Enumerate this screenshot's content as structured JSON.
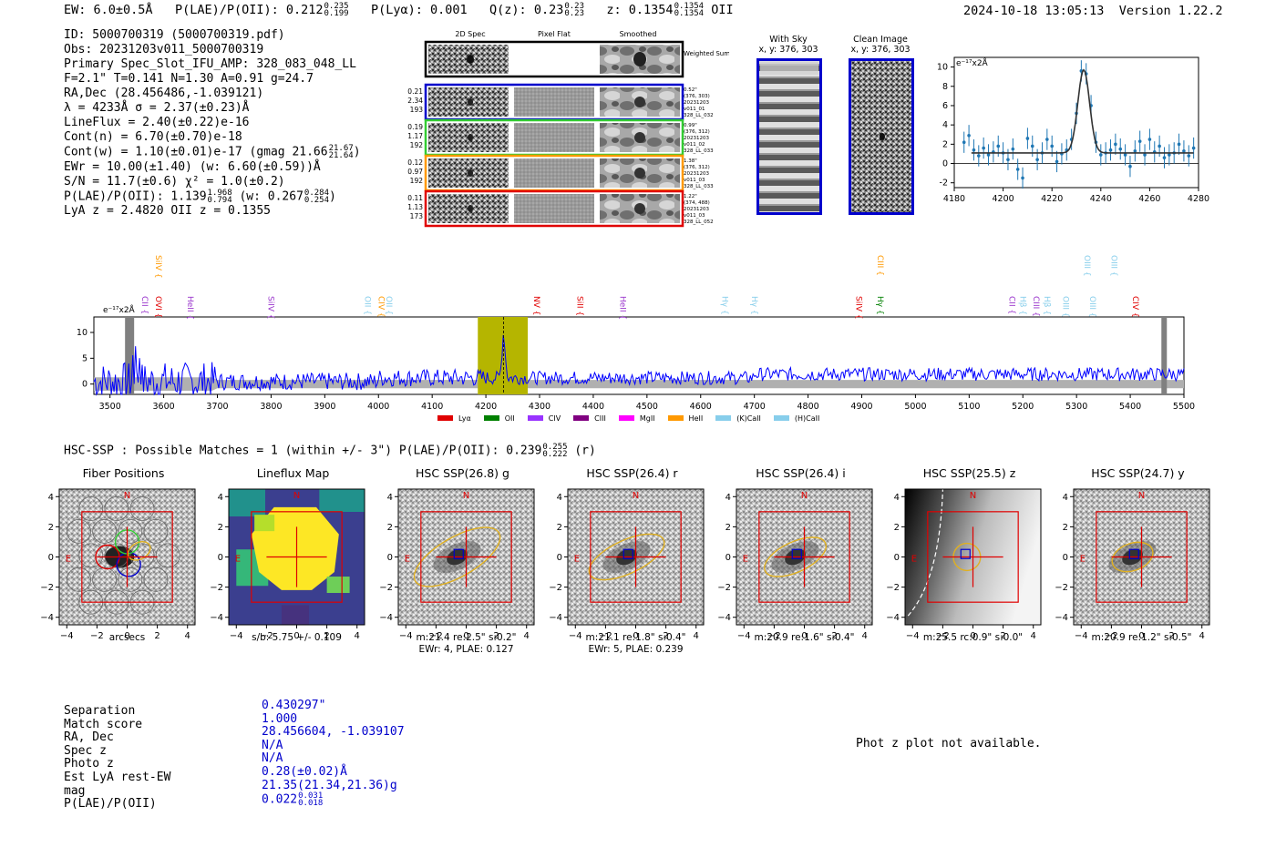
{
  "header": {
    "ew": "EW: 6.0±0.5Å",
    "plae_label": "P(LAE)/P(OII): 0.212",
    "plae_hi": "0.235",
    "plae_lo": "0.199",
    "plya": "P(Lyα): 0.001",
    "qz_label": "Q(z): 0.23",
    "qz_hi": "0.23",
    "qz_lo": "0.23",
    "z_label": "z: 0.1354",
    "z_hi": "0.1354",
    "z_lo": "0.1354",
    "z_line": "OII",
    "timestamp": "2024-10-18 13:05:13",
    "version": "Version 1.22.2"
  },
  "info": {
    "id": "ID: 5000700319 (5000700319.pdf)",
    "obs": "Obs: 20231203v011_5000700319",
    "primary": "Primary Spec_Slot_IFU_AMP: 328_083_048_LL",
    "fwhm": "F=2.1\"  T=0.141  N=1.30  A=0.91  g=24.7",
    "radec": "RA,Dec (28.456486,-1.039121)",
    "lambda": "λ = 4233Å  σ = 2.37(±0.23)Å",
    "lineflux": "LineFlux = 2.40(±0.22)e-16",
    "contn": "Cont(n) = 6.70(±0.70)e-18",
    "contw": "Cont(w) = 1.10(±0.01)e-17 (gmag 21.66",
    "contw_hi": "21.67",
    "contw_lo": "21.64",
    "contw_end": ")",
    "ewr": "EWr = 10.00(±1.40) (w: 6.60(±0.59))Å",
    "sn": "S/N = 11.7(±0.6)  χ² = 1.0(±0.2)",
    "plae": "P(LAE)/P(OII): 1.139",
    "plae_hi": "1.968",
    "plae_lo": "0.794",
    "plae_w": "(w: 0.267",
    "plae_w_hi": "0.284",
    "plae_w_lo": "0.254",
    "plae_w_end": ")",
    "lyaz": "LyA z = 2.4820  OII z = 0.1355"
  },
  "stamps": {
    "col_titles": [
      "2D Spec",
      "Pixel Flat",
      "Smoothed"
    ],
    "weighted_label": "Weighted Sum",
    "rows": [
      {
        "color": "#0000cc",
        "snr": [
          "0.21",
          "2.34",
          "193"
        ],
        "meta": [
          "0.52\"",
          "(376, 303)",
          "20231203",
          "v011_01",
          "328_LL_032"
        ]
      },
      {
        "color": "#33cc33",
        "snr": [
          "0.19",
          "1.17",
          "192"
        ],
        "meta": [
          "0.99\"",
          "(376, 312)",
          "20231203",
          "v011_02",
          "328_LL_033"
        ]
      },
      {
        "color": "#ff9900",
        "snr": [
          "0.12",
          "0.97",
          "192"
        ],
        "meta": [
          "1.38\"",
          "(376, 312)",
          "20231203",
          "v011_03",
          "328_LL_033"
        ]
      },
      {
        "color": "#e00000",
        "snr": [
          "0.11",
          "1.13",
          "173"
        ],
        "meta": [
          "1.22\"",
          "(374, 488)",
          "20231203",
          "v011_03",
          "328_LL_052"
        ]
      }
    ]
  },
  "sky": {
    "with_sky_title": "With Sky",
    "with_sky_xy": "x, y: 376, 303",
    "clean_title": "Clean Image",
    "clean_xy": "x, y: 376, 303"
  },
  "chart_data": [
    {
      "type": "line",
      "title": "",
      "ylabel_unit": "e⁻¹⁷x2Å",
      "xlabel": "",
      "xlim": [
        4180,
        4280
      ],
      "ylim": [
        -2.5,
        11
      ],
      "x_ticks": [
        4180,
        4200,
        4220,
        4240,
        4260,
        4280
      ],
      "y_ticks": [
        -2,
        0,
        2,
        4,
        6,
        8,
        10
      ],
      "series": [
        {
          "name": "data",
          "x": [
            4184,
            4186,
            4188,
            4190,
            4192,
            4194,
            4196,
            4198,
            4200,
            4202,
            4204,
            4206,
            4208,
            4210,
            4212,
            4214,
            4216,
            4218,
            4220,
            4222,
            4224,
            4226,
            4228,
            4230,
            4232,
            4234,
            4236,
            4238,
            4240,
            4242,
            4244,
            4246,
            4248,
            4250,
            4252,
            4254,
            4256,
            4258,
            4260,
            4262,
            4264,
            4266,
            4268,
            4270,
            4272,
            4274,
            4276,
            4278
          ],
          "values": [
            2.2,
            2.9,
            1.4,
            0.8,
            1.6,
            0.9,
            1.2,
            1.8,
            1.1,
            0.4,
            1.5,
            -0.6,
            -1.5,
            2.6,
            1.8,
            0.4,
            1.1,
            2.5,
            1.8,
            0.2,
            1.0,
            1.4,
            2.5,
            5.2,
            9.6,
            9.3,
            6.0,
            2.2,
            0.9,
            1.1,
            1.4,
            2.0,
            1.5,
            0.9,
            -0.3,
            1.3,
            2.3,
            0.9,
            2.5,
            1.2,
            1.8,
            0.6,
            0.9,
            1.1,
            2.0,
            1.3,
            0.8,
            1.6
          ]
        },
        {
          "name": "gaussian fit",
          "center": 4233,
          "amplitude": 8.6,
          "sigma": 2.4,
          "baseline": 1.1
        }
      ]
    },
    {
      "type": "line",
      "title": "",
      "ylabel_unit": "e⁻¹⁷x2Å",
      "xlim": [
        3470,
        5500
      ],
      "ylim": [
        -2,
        13
      ],
      "x_ticks": [
        3500,
        3600,
        3700,
        3800,
        3900,
        4000,
        4100,
        4200,
        4300,
        4400,
        4500,
        4600,
        4700,
        4800,
        4900,
        5000,
        5100,
        5200,
        5300,
        5400,
        5500
      ],
      "y_ticks": [
        0,
        5,
        10
      ],
      "highlight_range": [
        4185,
        4278
      ],
      "marker_x": 4233,
      "line_labels": [
        {
          "label": "CII",
          "x": 3555,
          "color": "#9933cc",
          "level": 2
        },
        {
          "label": "SiIV",
          "x": 3580,
          "color": "#ff9900",
          "level": 0
        },
        {
          "label": "OVI",
          "x": 3580,
          "color": "#e00000",
          "level": 2
        },
        {
          "label": "HeII",
          "x": 3640,
          "color": "#9933cc",
          "level": 2
        },
        {
          "label": "SiIV",
          "x": 3790,
          "color": "#9933cc",
          "level": 2
        },
        {
          "label": "OII",
          "x": 3970,
          "color": "#87ceeb",
          "level": 2
        },
        {
          "label": "CIV",
          "x": 3995,
          "color": "#ff9900",
          "level": 2
        },
        {
          "label": "OII",
          "x": 4010,
          "color": "#87ceeb",
          "level": 2
        },
        {
          "label": "NV",
          "x": 4285,
          "color": "#e00000",
          "level": 2
        },
        {
          "label": "SiII",
          "x": 4365,
          "color": "#e00000",
          "level": 2
        },
        {
          "label": "HeII",
          "x": 4445,
          "color": "#9933cc",
          "level": 2
        },
        {
          "label": "Hγ",
          "x": 4635,
          "color": "#87ceeb",
          "level": 2
        },
        {
          "label": "Hγ",
          "x": 4690,
          "color": "#87ceeb",
          "level": 2
        },
        {
          "label": "SiIV",
          "x": 4885,
          "color": "#e00000",
          "level": 2
        },
        {
          "label": "CIII",
          "x": 4925,
          "color": "#ff9900",
          "level": 0
        },
        {
          "label": "Hγ",
          "x": 4925,
          "color": "#008000",
          "level": 2
        },
        {
          "label": "CII",
          "x": 5170,
          "color": "#9933cc",
          "level": 2
        },
        {
          "label": "Hβ",
          "x": 5190,
          "color": "#87ceeb",
          "level": 2
        },
        {
          "label": "CIII",
          "x": 5215,
          "color": "#9933cc",
          "level": 2
        },
        {
          "label": "Hβ",
          "x": 5235,
          "color": "#87ceeb",
          "level": 2
        },
        {
          "label": "OIII",
          "x": 5270,
          "color": "#87ceeb",
          "level": 2
        },
        {
          "label": "OIII",
          "x": 5310,
          "color": "#87ceeb",
          "level": 0
        },
        {
          "label": "OIII",
          "x": 5320,
          "color": "#87ceeb",
          "level": 2
        },
        {
          "label": "OIII",
          "x": 5360,
          "color": "#87ceeb",
          "level": 0
        },
        {
          "label": "CIV",
          "x": 5400,
          "color": "#e00000",
          "level": 2
        }
      ],
      "legend": [
        {
          "label": "Lyα",
          "color": "#e00000"
        },
        {
          "label": "OII",
          "color": "#008000"
        },
        {
          "label": "CIV",
          "color": "#9933ff"
        },
        {
          "label": "CIII",
          "color": "#800080"
        },
        {
          "label": "MgII",
          "color": "#ff00ff"
        },
        {
          "label": "HeII",
          "color": "#ff9900"
        },
        {
          "label": "(K)CaII",
          "color": "#87ceeb"
        },
        {
          "label": "(H)CaII",
          "color": "#87ceeb"
        }
      ]
    }
  ],
  "hsc": {
    "summary": "HSC-SSP : Possible Matches = 1 (within +/- 3\")  P(LAE)/P(OII): 0.239",
    "summary_hi": "0.255",
    "summary_lo": "0.222",
    "summary_end": "(r)",
    "compass_n": "N",
    "compass_e": "E",
    "axis_ticks": [
      "−4",
      "−2",
      "0",
      "2",
      "4"
    ],
    "panels": [
      {
        "title": "Fiber Positions",
        "caption1": "arcsecs",
        "caption2": ""
      },
      {
        "title": "Lineflux Map",
        "caption1": "s/b: 5.75 +/- 0.109",
        "caption2": ""
      },
      {
        "title": "HSC SSP(26.8) g",
        "caption1": "m:21.4  re:2.5\"  s:0.2\"",
        "caption2": "EWr: 4, PLAE: 0.127"
      },
      {
        "title": "HSC SSP(26.4) r",
        "caption1": "m:21.1  re:1.8\"  s:0.4\"",
        "caption2": "EWr: 5, PLAE: 0.239"
      },
      {
        "title": "HSC SSP(26.4) i",
        "caption1": "m:20.9  re:1.6\"  s:0.4\"",
        "caption2": ""
      },
      {
        "title": "HSC SSP(25.5) z",
        "caption1": "m:25.5  rc:0.9\"  s:0.0\"",
        "caption2": ""
      },
      {
        "title": "HSC SSP(24.7) y",
        "caption1": "m:20.9  re:1.2\"  s:0.5\"",
        "caption2": ""
      }
    ]
  },
  "match_table": {
    "labels": [
      "Separation",
      "Match score",
      "RA, Dec",
      "Spec z",
      "Photo z",
      "Est LyA rest-EW",
      "mag",
      "P(LAE)/P(OII)"
    ],
    "values": [
      "0.430297\"",
      "1.000",
      "28.456604, -1.039107",
      "N/A",
      "N/A",
      "0.28(±0.02)Å",
      "21.35(21.34,21.36)g",
      "0.022"
    ],
    "plae_hi": "0.031",
    "plae_lo": "0.018"
  },
  "photz_note": "Phot z plot not available.",
  "colors": {
    "spectrum": "#0000ff",
    "fit": "#333333",
    "points": "#1f77b4",
    "highlight": "#b5b500"
  }
}
